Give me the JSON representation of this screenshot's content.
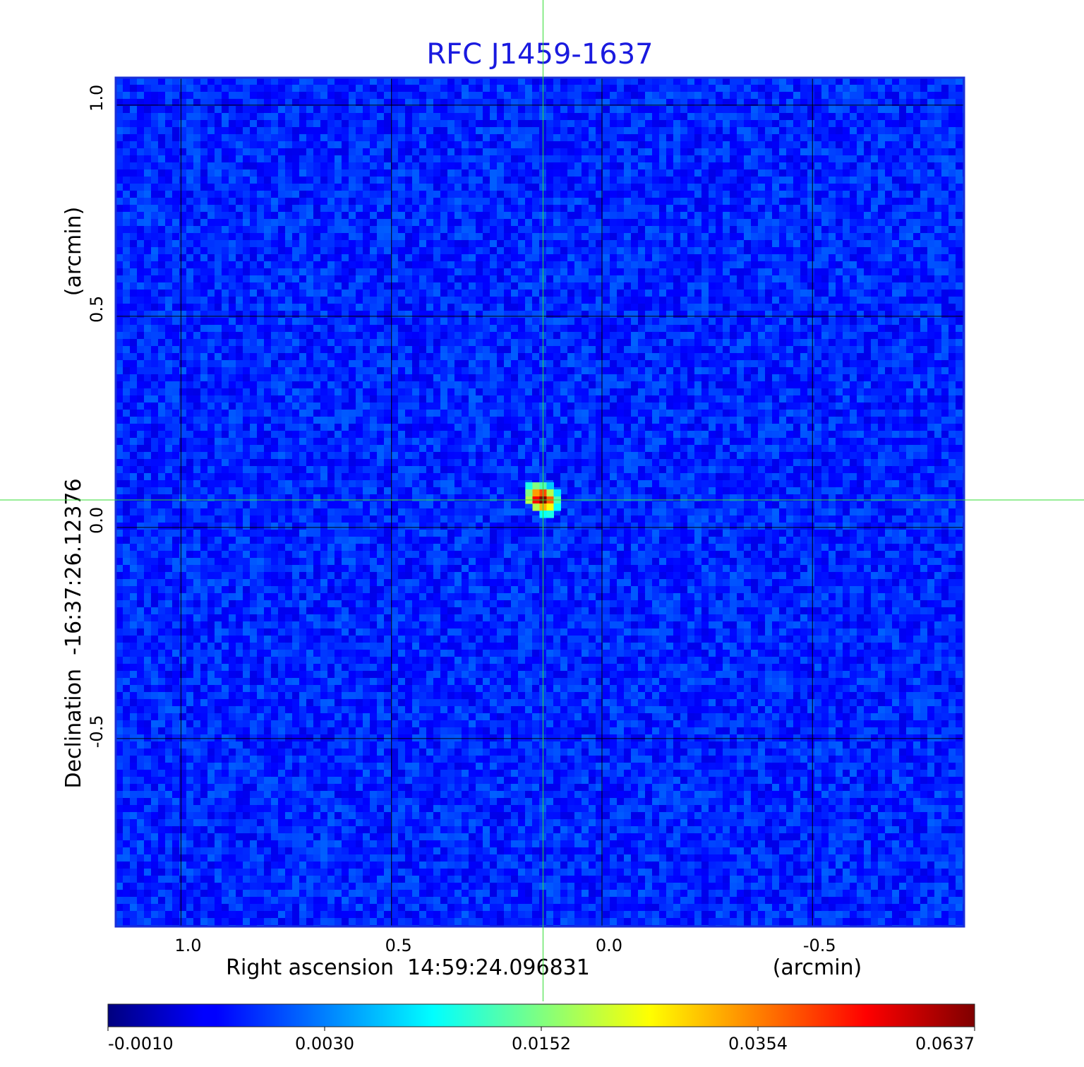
{
  "chart_data": {
    "type": "heatmap",
    "title": "RFC J1459-1637",
    "xlabel": "Right ascension  14:59:24.096831",
    "xlabel_unit": "(arcmin)",
    "ylabel": "Declination  -16:37:26.12376",
    "ylabel_unit": "(arcmin)",
    "x_ticks": [
      "1.0",
      "0.5",
      "0.0",
      "-0.5"
    ],
    "x_tick_values": [
      1.0,
      0.5,
      0.0,
      -0.5
    ],
    "y_ticks": [
      "1.0",
      "0.5",
      "0.0",
      "-0.5"
    ],
    "y_tick_values": [
      1.0,
      0.5,
      0.0,
      -0.5
    ],
    "xlim": [
      1.155,
      -0.86
    ],
    "ylim": [
      -0.945,
      1.065
    ],
    "grid": true,
    "crosshair": {
      "x": 0.14,
      "y": 0.065,
      "color": "#33dd33"
    },
    "source_peak": {
      "x": 0.14,
      "y": 0.065,
      "value": 0.0637
    },
    "colorbar": {
      "ticks": [
        "-0.0010",
        "0.0030",
        "0.0152",
        "0.0354",
        "0.0637"
      ],
      "tick_values": [
        -0.001,
        0.003,
        0.0152,
        0.0354,
        0.0637
      ],
      "colormap": "jet"
    }
  }
}
